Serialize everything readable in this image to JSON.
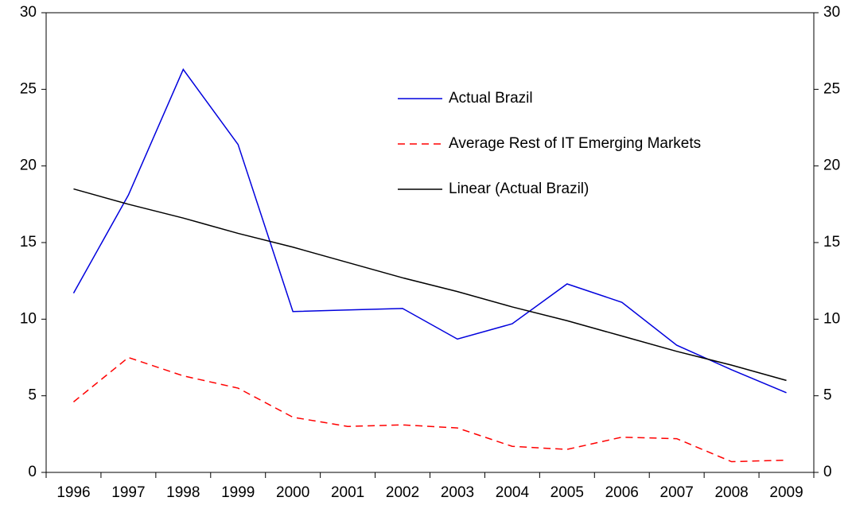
{
  "chart_data": {
    "type": "line",
    "categories": [
      "1996",
      "1997",
      "1998",
      "1999",
      "2000",
      "2001",
      "2002",
      "2003",
      "2004",
      "2005",
      "2006",
      "2007",
      "2008",
      "2009"
    ],
    "series": [
      {
        "name": "Actual Brazil",
        "color": "#0000dd",
        "dash": "solid",
        "values": [
          11.7,
          18.1,
          26.3,
          21.4,
          10.5,
          10.6,
          10.7,
          8.7,
          9.7,
          12.3,
          11.1,
          8.3,
          6.7,
          5.2
        ]
      },
      {
        "name": "Average Rest of IT Emerging Markets",
        "color": "#ff0000",
        "dash": "dashed",
        "values": [
          4.6,
          7.5,
          6.3,
          5.5,
          3.6,
          3.0,
          3.1,
          2.9,
          1.7,
          1.5,
          2.3,
          2.2,
          0.7,
          0.8
        ]
      },
      {
        "name": "Linear (Actual Brazil)",
        "color": "#000000",
        "dash": "solid",
        "values": [
          18.5,
          17.5,
          16.6,
          15.6,
          14.7,
          13.7,
          12.7,
          11.8,
          10.8,
          9.9,
          8.9,
          7.9,
          7.0,
          6.0
        ]
      }
    ],
    "ylim": [
      0,
      30
    ],
    "yticks": [
      0,
      5,
      10,
      15,
      20,
      25,
      30
    ],
    "y2lim": [
      0,
      30
    ],
    "y2ticks": [
      0,
      5,
      10,
      15,
      20,
      25,
      30
    ],
    "legend": "upper center"
  }
}
